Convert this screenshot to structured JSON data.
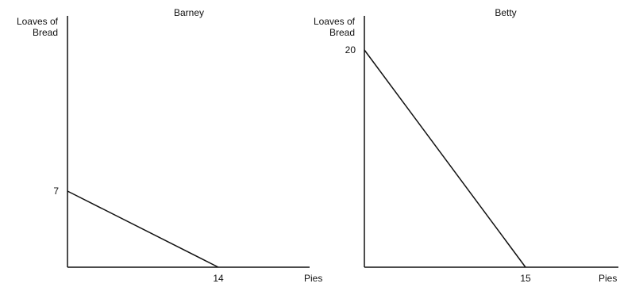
{
  "chart_data": [
    {
      "type": "line",
      "title": "Barney",
      "ylabel_lines": [
        "Loaves of",
        "Bread"
      ],
      "xlabel": "Pies",
      "series": [
        {
          "x": [
            0,
            14
          ],
          "y": [
            7,
            0
          ]
        }
      ],
      "xticks": [
        14
      ],
      "yticks": [
        7
      ],
      "xlim": [
        0,
        14
      ],
      "ylim": [
        0,
        7
      ],
      "grid": false,
      "line_color": "#111111"
    },
    {
      "type": "line",
      "title": "Betty",
      "ylabel_lines": [
        "Loaves of",
        "Bread"
      ],
      "xlabel": "Pies",
      "series": [
        {
          "x": [
            0,
            15
          ],
          "y": [
            20,
            0
          ]
        }
      ],
      "xticks": [
        15
      ],
      "yticks": [
        20
      ],
      "xlim": [
        0,
        15
      ],
      "ylim": [
        0,
        20
      ],
      "grid": false,
      "line_color": "#111111"
    }
  ]
}
